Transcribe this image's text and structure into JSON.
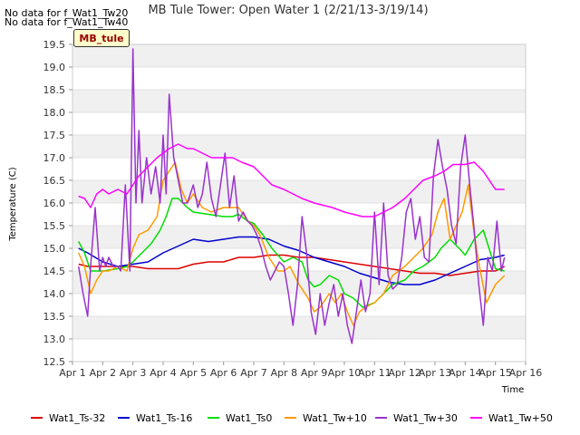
{
  "no_data_notes": [
    "No data for f_Wat1_Tw20",
    "No data for f_Wat1_Tw40"
  ],
  "badge": "MB_tule",
  "chart_data": {
    "type": "line",
    "title": "MB Tule Tower: Open Water 1 (2/21/13-3/19/14)",
    "xlabel": "Time",
    "ylabel": "Temperature (C)",
    "xlim": [
      1,
      16
    ],
    "ylim": [
      12.5,
      19.5
    ],
    "x_ticks": [
      1,
      2,
      3,
      4,
      5,
      6,
      7,
      8,
      9,
      10,
      11,
      12,
      13,
      14,
      15,
      16
    ],
    "x_tick_labels": [
      "Apr 1",
      "Apr 2",
      "Apr 3",
      "Apr 4",
      "Apr 5",
      "Apr 6",
      "Apr 7",
      "Apr 8",
      "Apr 9",
      "Apr 10",
      "Apr 11",
      "Apr 12",
      "Apr 13",
      "Apr 14",
      "Apr 15",
      "Apr 16"
    ],
    "y_ticks": [
      12.5,
      13.0,
      13.5,
      14.0,
      14.5,
      15.0,
      15.5,
      16.0,
      16.5,
      17.0,
      17.5,
      18.0,
      18.5,
      19.0,
      19.5
    ],
    "y_tick_labels": [
      "12.5",
      "13.0",
      "13.5",
      "14.0",
      "14.5",
      "15.0",
      "15.5",
      "16.0",
      "16.5",
      "17.0",
      "17.5",
      "18.0",
      "18.5",
      "19.0",
      "19.5"
    ],
    "grid": true,
    "legend_position": "bottom",
    "series": [
      {
        "name": "Wat1_Ts-32",
        "color": "#dd0000",
        "x": [
          1.2,
          1.5,
          2.0,
          2.5,
          3.0,
          3.5,
          4.0,
          4.5,
          5.0,
          5.5,
          6.0,
          6.5,
          7.0,
          7.5,
          8.0,
          8.5,
          9.0,
          9.5,
          10.0,
          10.5,
          11.0,
          11.5,
          12.0,
          12.5,
          13.0,
          13.5,
          14.0,
          14.5,
          15.0,
          15.3
        ],
        "y": [
          14.65,
          14.6,
          14.6,
          14.6,
          14.6,
          14.55,
          14.55,
          14.55,
          14.65,
          14.7,
          14.7,
          14.8,
          14.8,
          14.85,
          14.85,
          14.8,
          14.8,
          14.75,
          14.7,
          14.65,
          14.6,
          14.55,
          14.5,
          14.45,
          14.45,
          14.4,
          14.45,
          14.5,
          14.5,
          14.6
        ]
      },
      {
        "name": "Wat1_Ts-16",
        "color": "#0000cc",
        "x": [
          1.2,
          1.5,
          2.0,
          2.5,
          3.0,
          3.5,
          4.0,
          4.5,
          5.0,
          5.5,
          6.0,
          6.5,
          7.0,
          7.5,
          8.0,
          8.5,
          9.0,
          9.5,
          10.0,
          10.5,
          11.0,
          11.5,
          12.0,
          12.5,
          13.0,
          13.5,
          14.0,
          14.5,
          15.0,
          15.3
        ],
        "y": [
          15.0,
          14.9,
          14.7,
          14.6,
          14.65,
          14.7,
          14.9,
          15.05,
          15.2,
          15.15,
          15.2,
          15.25,
          15.25,
          15.2,
          15.05,
          14.95,
          14.8,
          14.7,
          14.6,
          14.45,
          14.35,
          14.25,
          14.2,
          14.2,
          14.3,
          14.45,
          14.6,
          14.75,
          14.8,
          14.85
        ]
      },
      {
        "name": "Wat1_Ts0",
        "color": "#00dd00",
        "x": [
          1.2,
          1.4,
          1.6,
          2.0,
          2.5,
          2.8,
          3.0,
          3.3,
          3.6,
          3.9,
          4.1,
          4.3,
          4.5,
          4.8,
          5.0,
          5.5,
          6.0,
          6.3,
          6.5,
          6.8,
          7.0,
          7.3,
          7.6,
          8.0,
          8.3,
          8.6,
          8.8,
          9.0,
          9.2,
          9.5,
          9.8,
          10.0,
          10.3,
          10.6,
          11.0,
          11.3,
          11.6,
          12.0,
          12.3,
          12.6,
          13.0,
          13.2,
          13.5,
          13.8,
          14.0,
          14.3,
          14.6,
          15.0,
          15.3
        ],
        "y": [
          15.15,
          14.9,
          14.5,
          14.5,
          14.55,
          14.6,
          14.7,
          14.9,
          15.1,
          15.4,
          15.7,
          16.1,
          16.1,
          15.9,
          15.8,
          15.75,
          15.7,
          15.7,
          15.75,
          15.6,
          15.55,
          15.3,
          15.0,
          14.7,
          14.8,
          14.7,
          14.3,
          14.15,
          14.2,
          14.4,
          14.3,
          14.0,
          13.9,
          13.7,
          13.8,
          14.0,
          14.2,
          14.3,
          14.5,
          14.6,
          14.8,
          15.0,
          15.2,
          15.0,
          14.85,
          15.2,
          15.4,
          14.55,
          14.5
        ]
      },
      {
        "name": "Wat1_Tw+10",
        "color": "#ff9900",
        "x": [
          1.2,
          1.4,
          1.6,
          1.8,
          2.0,
          2.2,
          2.5,
          2.8,
          3.0,
          3.2,
          3.5,
          3.8,
          4.0,
          4.2,
          4.4,
          4.6,
          4.8,
          5.0,
          5.3,
          5.6,
          6.0,
          6.3,
          6.5,
          6.8,
          7.0,
          7.2,
          7.5,
          7.8,
          8.0,
          8.2,
          8.5,
          8.8,
          9.0,
          9.2,
          9.5,
          9.7,
          9.9,
          10.1,
          10.3,
          10.5,
          10.7,
          11.0,
          11.3,
          11.6,
          12.0,
          12.3,
          12.6,
          12.9,
          13.1,
          13.3,
          13.5,
          13.7,
          13.9,
          14.1,
          14.3,
          14.5,
          14.7,
          15.0,
          15.3
        ],
        "y": [
          14.9,
          14.6,
          14.0,
          14.3,
          14.5,
          14.5,
          14.6,
          14.5,
          15.0,
          15.3,
          15.4,
          15.7,
          16.5,
          16.7,
          16.9,
          16.3,
          16.0,
          16.2,
          15.9,
          15.8,
          15.9,
          15.9,
          15.9,
          15.6,
          15.5,
          15.3,
          14.8,
          14.5,
          14.5,
          14.6,
          14.2,
          13.9,
          13.6,
          13.7,
          14.0,
          13.8,
          14.0,
          13.6,
          13.3,
          13.6,
          13.7,
          13.8,
          14.0,
          14.4,
          14.6,
          14.8,
          15.0,
          15.3,
          15.8,
          16.1,
          15.2,
          15.5,
          15.8,
          16.4,
          15.3,
          14.5,
          13.8,
          14.2,
          14.4
        ]
      },
      {
        "name": "Wat1_Tw+30",
        "color": "#9933cc",
        "x": [
          1.2,
          1.35,
          1.5,
          1.6,
          1.75,
          1.9,
          2.0,
          2.1,
          2.2,
          2.35,
          2.5,
          2.6,
          2.75,
          2.9,
          3.0,
          3.1,
          3.2,
          3.3,
          3.45,
          3.6,
          3.75,
          3.9,
          4.0,
          4.1,
          4.2,
          4.35,
          4.5,
          4.65,
          4.8,
          5.0,
          5.15,
          5.3,
          5.45,
          5.6,
          5.75,
          5.9,
          6.05,
          6.2,
          6.35,
          6.5,
          6.65,
          6.8,
          6.95,
          7.1,
          7.25,
          7.4,
          7.55,
          7.7,
          7.85,
          8.0,
          8.15,
          8.3,
          8.45,
          8.6,
          8.75,
          8.9,
          9.05,
          9.2,
          9.35,
          9.5,
          9.65,
          9.8,
          9.95,
          10.1,
          10.25,
          10.4,
          10.55,
          10.7,
          10.85,
          11.0,
          11.15,
          11.3,
          11.45,
          11.6,
          11.75,
          11.9,
          12.05,
          12.2,
          12.35,
          12.5,
          12.65,
          12.8,
          12.95,
          13.1,
          13.25,
          13.4,
          13.55,
          13.7,
          13.85,
          14.0,
          14.15,
          14.3,
          14.45,
          14.6,
          14.75,
          14.9,
          15.05,
          15.2,
          15.3
        ],
        "y": [
          14.6,
          14.0,
          13.5,
          14.6,
          15.9,
          14.5,
          14.8,
          14.6,
          14.8,
          14.6,
          14.6,
          14.5,
          16.4,
          14.5,
          19.4,
          16.0,
          17.6,
          16.0,
          17.0,
          16.2,
          16.8,
          16.0,
          17.5,
          16.2,
          18.4,
          17.0,
          16.5,
          16.0,
          16.0,
          16.4,
          15.9,
          16.2,
          16.9,
          16.1,
          15.7,
          16.4,
          17.1,
          15.9,
          16.6,
          15.6,
          15.8,
          15.6,
          15.5,
          15.3,
          15.0,
          14.6,
          14.3,
          14.5,
          14.7,
          14.6,
          14.0,
          13.3,
          14.2,
          15.7,
          14.9,
          13.6,
          13.1,
          14.0,
          13.3,
          13.8,
          14.2,
          13.5,
          14.0,
          13.3,
          12.9,
          13.6,
          14.3,
          13.6,
          14.0,
          15.8,
          14.2,
          16.0,
          14.4,
          14.1,
          14.2,
          14.8,
          15.8,
          16.1,
          15.2,
          15.7,
          14.8,
          14.7,
          16.6,
          17.4,
          16.8,
          16.3,
          15.5,
          15.1,
          16.8,
          17.5,
          16.4,
          15.4,
          14.2,
          13.3,
          14.8,
          14.5,
          15.6,
          14.5,
          14.8
        ]
      },
      {
        "name": "Wat1_Tw+50",
        "color": "#ff00ff",
        "x": [
          1.2,
          1.4,
          1.6,
          1.8,
          2.0,
          2.2,
          2.5,
          2.8,
          3.0,
          3.2,
          3.5,
          3.8,
          4.0,
          4.2,
          4.5,
          4.8,
          5.0,
          5.3,
          5.6,
          6.0,
          6.3,
          6.6,
          7.0,
          7.3,
          7.6,
          8.0,
          8.3,
          8.6,
          9.0,
          9.3,
          9.6,
          10.0,
          10.3,
          10.6,
          11.0,
          11.3,
          11.6,
          12.0,
          12.3,
          12.6,
          13.0,
          13.3,
          13.6,
          14.0,
          14.3,
          14.6,
          15.0,
          15.3
        ],
        "y": [
          16.15,
          16.1,
          15.9,
          16.2,
          16.3,
          16.2,
          16.3,
          16.2,
          16.4,
          16.6,
          16.8,
          17.0,
          17.1,
          17.2,
          17.3,
          17.2,
          17.2,
          17.1,
          17.0,
          17.0,
          17.0,
          16.9,
          16.8,
          16.6,
          16.4,
          16.3,
          16.2,
          16.1,
          16.0,
          15.95,
          15.9,
          15.8,
          15.75,
          15.7,
          15.7,
          15.8,
          15.9,
          16.1,
          16.3,
          16.5,
          16.6,
          16.7,
          16.85,
          16.85,
          16.9,
          16.7,
          16.3,
          16.3
        ]
      }
    ]
  }
}
